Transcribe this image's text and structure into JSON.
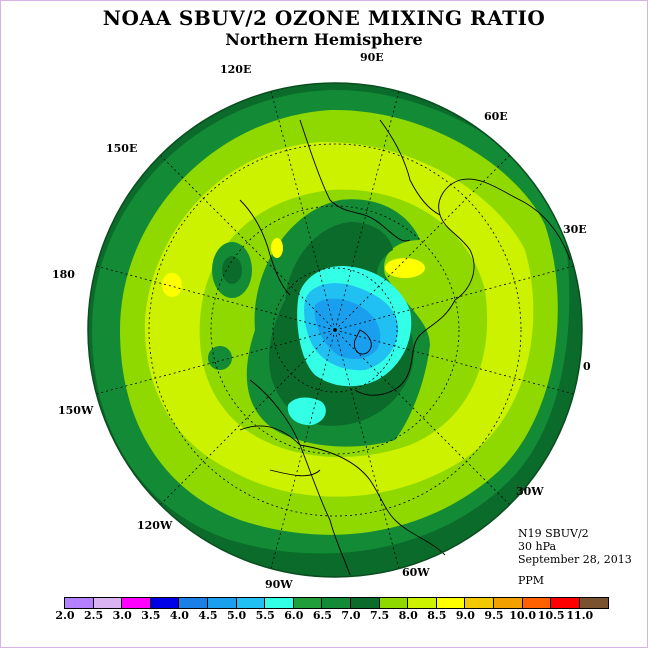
{
  "header": {
    "title": "NOAA SBUV/2 OZONE MIXING RATIO",
    "subtitle": "Northern Hemisphere"
  },
  "longitude_labels": [
    "90E",
    "60E",
    "30E",
    "0",
    "30W",
    "60W",
    "90W",
    "120W",
    "150W",
    "180",
    "150E",
    "120E"
  ],
  "info": {
    "satellite": "N19 SBUV/2",
    "level": "30 hPa",
    "date": "September 28, 2013",
    "units": "PPM"
  },
  "colorbar": {
    "labels": [
      "2.0",
      "2.5",
      "3.0",
      "3.5",
      "4.0",
      "4.5",
      "5.0",
      "5.5",
      "6.0",
      "6.5",
      "7.0",
      "7.5",
      "8.0",
      "8.5",
      "9.0",
      "9.5",
      "10.0",
      "10.5",
      "11.0"
    ],
    "colors": [
      "#b380ff",
      "#d9b3f2",
      "#ff00ff",
      "#0000e6",
      "#1a7fe6",
      "#1a9fee",
      "#20c0f2",
      "#33ffe6",
      "#1f9e3a",
      "#138a35",
      "#0a6b2a",
      "#8fd900",
      "#ccf200",
      "#ffff00",
      "#f2c800",
      "#f2a000",
      "#ff6000",
      "#ff0000",
      "#7a5230"
    ]
  },
  "field_colors": {
    "dark_green": "#0a6b2a",
    "mid_green": "#138a35",
    "green": "#1f9e3a",
    "lime": "#8fd900",
    "yellow_green": "#ccf200",
    "yellow": "#ffff00",
    "cyan": "#33ffe6",
    "light_blue": "#20c0f2",
    "blue": "#1a9fee"
  }
}
